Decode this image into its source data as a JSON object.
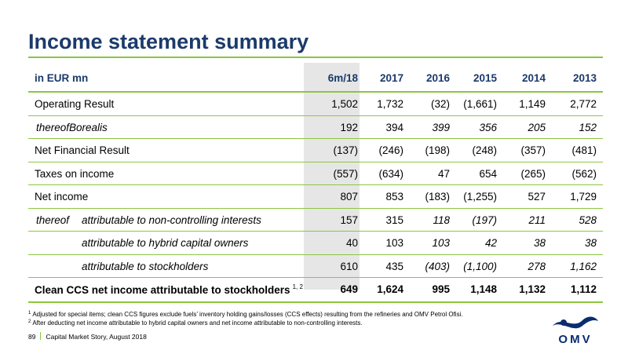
{
  "title": "Income statement summary",
  "table": {
    "unit_label": "in EUR mn",
    "columns": [
      "6m/18",
      "2017",
      "2016",
      "2015",
      "2014",
      "2013"
    ],
    "rows": [
      {
        "label": "Operating Result",
        "values": [
          "1,502",
          "1,732",
          "(32)",
          "(1,661)",
          "1,149",
          "2,772"
        ]
      },
      {
        "prefix": "thereof",
        "label": "Borealis",
        "values": [
          "192",
          "394",
          "399",
          "356",
          "205",
          "152"
        ]
      },
      {
        "label": "Net Financial Result",
        "values": [
          "(137)",
          "(246)",
          "(198)",
          "(248)",
          "(357)",
          "(481)"
        ]
      },
      {
        "label": "Taxes on income",
        "values": [
          "(557)",
          "(634)",
          "47",
          "654",
          "(265)",
          "(562)"
        ]
      },
      {
        "label": "Net income",
        "values": [
          "807",
          "853",
          "(183)",
          "(1,255)",
          "527",
          "1,729"
        ]
      },
      {
        "prefix": "thereof",
        "label": "attributable to non-controlling interests",
        "values": [
          "157",
          "315",
          "118",
          "(197)",
          "211",
          "528"
        ]
      },
      {
        "label": "attributable to hybrid capital owners",
        "values": [
          "40",
          "103",
          "103",
          "42",
          "38",
          "38"
        ]
      },
      {
        "label": "attributable to stockholders",
        "values": [
          "610",
          "435",
          "(403)",
          "(1,100)",
          "278",
          "1,162"
        ]
      },
      {
        "label": "Clean CCS net income attributable to stockholders",
        "footnote_ref": "1, 2",
        "values": [
          "649",
          "1,624",
          "995",
          "1,148",
          "1,132",
          "1,112"
        ]
      }
    ]
  },
  "footnotes": [
    {
      "mark": "1",
      "text": "Adjusted for special items; clean CCS figures exclude fuels’ inventory holding gains/losses (CCS effects) resulting from the refineries and OMV Petrol Ofisi."
    },
    {
      "mark": "2",
      "text": "After deducting net income attributable to hybrid capital owners and net income attributable to non-controlling interests."
    }
  ],
  "footer": {
    "page": "89",
    "text": "Capital Market Story, August 2018"
  },
  "logo": {
    "text": "OMV"
  },
  "colors": {
    "title": "#1b3a6b",
    "accent": "#8cc63f",
    "highlight": "#e6e6e6",
    "logo": "#0a2d6e"
  }
}
